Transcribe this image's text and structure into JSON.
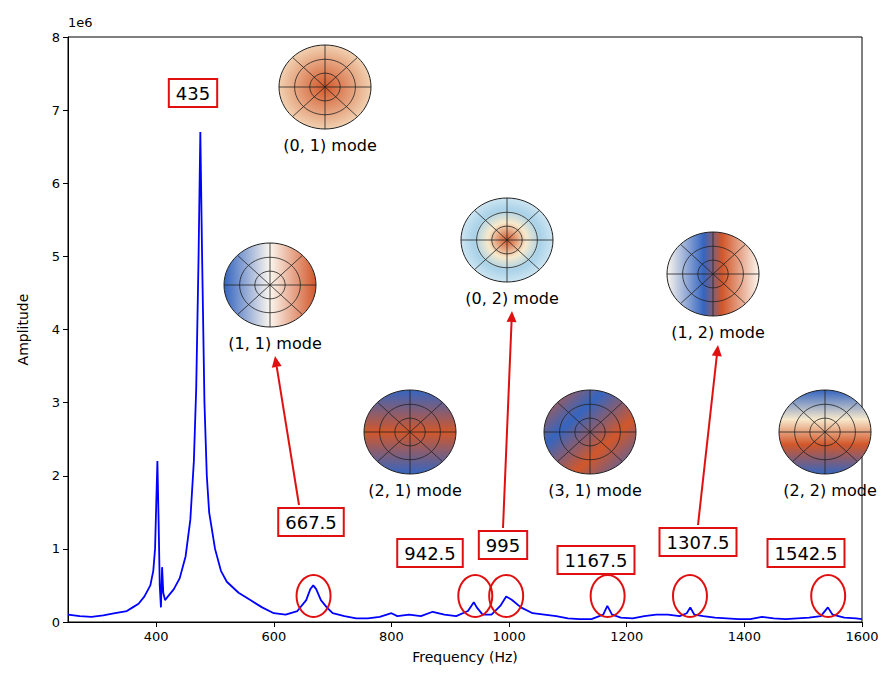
{
  "chart_data": {
    "type": "line",
    "x_label": "Frequency (Hz)",
    "y_label": "Amplitude",
    "y_offset_text": "1e6",
    "color": "#0000ff",
    "grid": false,
    "xlim": [
      250,
      1600
    ],
    "xticks": [
      400,
      600,
      800,
      1000,
      1200,
      1400,
      1600
    ],
    "ylim": [
      0,
      8
    ],
    "yticks": [
      0,
      1,
      2,
      3,
      4,
      5,
      6,
      7,
      8
    ],
    "x": [
      250,
      270,
      290,
      310,
      330,
      350,
      360,
      370,
      380,
      390,
      395,
      398,
      400,
      402,
      404,
      406,
      408,
      410,
      412,
      415,
      420,
      430,
      440,
      450,
      458,
      464,
      468,
      472,
      475,
      478,
      482,
      486,
      490,
      500,
      510,
      520,
      540,
      560,
      580,
      600,
      620,
      640,
      655,
      662,
      667,
      672,
      680,
      690,
      700,
      720,
      740,
      760,
      780,
      800,
      810,
      830,
      850,
      870,
      890,
      910,
      930,
      940,
      945,
      955,
      970,
      985,
      995,
      1005,
      1020,
      1040,
      1060,
      1080,
      1100,
      1120,
      1140,
      1160,
      1167,
      1175,
      1190,
      1210,
      1230,
      1250,
      1270,
      1290,
      1302,
      1308,
      1315,
      1330,
      1350,
      1370,
      1390,
      1410,
      1430,
      1450,
      1470,
      1490,
      1510,
      1530,
      1542,
      1550,
      1570,
      1590,
      1600
    ],
    "values": [
      0.1,
      0.08,
      0.07,
      0.09,
      0.12,
      0.15,
      0.2,
      0.25,
      0.35,
      0.5,
      0.7,
      1.0,
      1.6,
      2.2,
      1.4,
      0.5,
      0.2,
      0.75,
      0.4,
      0.3,
      0.35,
      0.45,
      0.6,
      0.9,
      1.4,
      2.2,
      3.2,
      5.0,
      6.7,
      5.0,
      3.0,
      2.0,
      1.5,
      1.0,
      0.7,
      0.55,
      0.4,
      0.3,
      0.2,
      0.12,
      0.1,
      0.15,
      0.3,
      0.45,
      0.5,
      0.45,
      0.3,
      0.2,
      0.12,
      0.08,
      0.05,
      0.05,
      0.07,
      0.12,
      0.08,
      0.1,
      0.08,
      0.14,
      0.1,
      0.08,
      0.15,
      0.27,
      0.2,
      0.1,
      0.1,
      0.22,
      0.35,
      0.3,
      0.2,
      0.12,
      0.1,
      0.08,
      0.05,
      0.04,
      0.04,
      0.1,
      0.22,
      0.1,
      0.06,
      0.05,
      0.08,
      0.1,
      0.1,
      0.08,
      0.12,
      0.2,
      0.1,
      0.08,
      0.06,
      0.05,
      0.04,
      0.04,
      0.07,
      0.05,
      0.04,
      0.05,
      0.06,
      0.08,
      0.2,
      0.1,
      0.06,
      0.05,
      0.04
    ],
    "peak_labels": [
      435,
      667.5,
      942.5,
      995,
      1167.5,
      1307.5,
      1542.5
    ],
    "circled_peaks": [
      667.5,
      942.5,
      995,
      1167.5,
      1307.5,
      1542.5
    ],
    "modes": [
      {
        "label": "(0, 1) mode"
      },
      {
        "label": "(1, 1) mode",
        "peak": 667.5
      },
      {
        "label": "(2, 1) mode"
      },
      {
        "label": "(0, 2) mode",
        "peak": 995
      },
      {
        "label": "(3, 1) mode"
      },
      {
        "label": "(1, 2) mode",
        "peak": 1307.5
      },
      {
        "label": "(2, 2) mode"
      }
    ]
  }
}
